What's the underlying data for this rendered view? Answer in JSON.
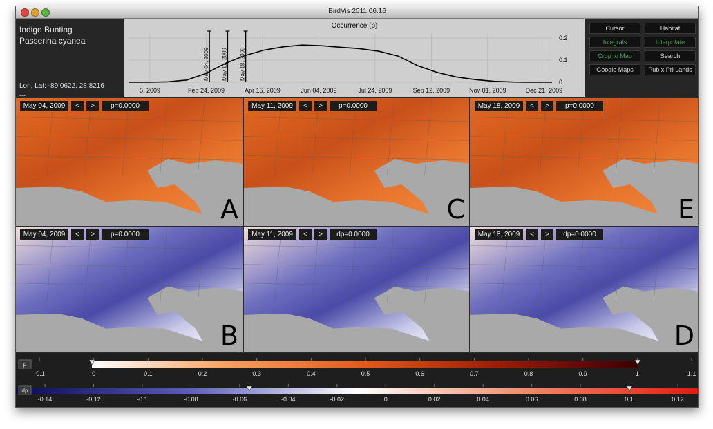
{
  "window": {
    "title": "BirdVis   2011.06.16"
  },
  "info": {
    "common_name": "Indigo Bunting",
    "scientific_name": "Passerina cyanea",
    "lonlat": "Lon, Lat: -89.0622, 28.8216",
    "extra": "---"
  },
  "chart_data": {
    "type": "line",
    "title": "Occurrence (p)",
    "x_tick_labels": [
      "5, 2009",
      "Feb 24, 2009",
      "Apr 15, 2009",
      "Jun 04, 2009",
      "Jul 24, 2009",
      "Sep 12, 2009",
      "Nov 01, 2009",
      "Dec 21, 2009"
    ],
    "y_tick_labels": [
      "0.2",
      "0.1",
      "0"
    ],
    "ylim": [
      0,
      0.2
    ],
    "grid": true,
    "series": [
      {
        "x": [
          "Jan 05",
          "Feb 04",
          "Mar 06",
          "Apr 05",
          "Apr 25",
          "May 04",
          "May 11",
          "May 18",
          "May 25",
          "Jun 04",
          "Jun 14",
          "Jun 24",
          "Jul 04",
          "Jul 24",
          "Aug 13",
          "Sep 02",
          "Sep 12",
          "Oct 02",
          "Oct 22",
          "Nov 11",
          "Dec 01",
          "Dec 21",
          "Jan 01"
        ],
        "values": [
          0.0,
          0.0,
          0.002,
          0.01,
          0.04,
          0.085,
          0.12,
          0.145,
          0.16,
          0.168,
          0.165,
          0.158,
          0.152,
          0.14,
          0.118,
          0.075,
          0.045,
          0.024,
          0.012,
          0.004,
          0.001,
          0.0,
          0.0
        ]
      }
    ],
    "markers": [
      "May 04, 2009",
      "May 11, 2009",
      "May 18, 2009"
    ]
  },
  "buttons": [
    {
      "label": "Cursor",
      "style": "normal"
    },
    {
      "label": "Habitat",
      "style": "normal"
    },
    {
      "label": "Integrals",
      "style": "green"
    },
    {
      "label": "Interpolate",
      "style": "green"
    },
    {
      "label": "Crop to Map",
      "style": "green"
    },
    {
      "label": "Search",
      "style": "normal"
    },
    {
      "label": "Google Maps",
      "style": "normal"
    },
    {
      "label": "Pub x Pri Lands",
      "style": "normal"
    }
  ],
  "panels": [
    {
      "date": "May 04, 2009",
      "value": "p=0.0000",
      "letter": "A",
      "kind": "p"
    },
    {
      "date": "May 11, 2009",
      "value": "p=0.0000",
      "letter": "C",
      "kind": "p"
    },
    {
      "date": "May 18, 2009",
      "value": "p=0.0000",
      "letter": "E",
      "kind": "p"
    },
    {
      "date": "May 04, 2009",
      "value": "p=0.0000",
      "letter": "B",
      "kind": "dp"
    },
    {
      "date": "May 11, 2009",
      "value": "dp=0.0000",
      "letter": "",
      "kind": "dp"
    },
    {
      "date": "May 18, 2009",
      "value": "dp=0.0000",
      "letter": "D",
      "kind": "dp"
    }
  ],
  "prev_label": "<",
  "next_label": ">",
  "p_scale": {
    "tag": "p",
    "labels": [
      "-0.1",
      "0",
      "0.1",
      "0.2",
      "0.3",
      "0.4",
      "0.5",
      "0.6",
      "0.7",
      "0.8",
      "0.9",
      "1",
      "1.1"
    ],
    "colors": [
      "#ffffff",
      "#f6a060",
      "#e4581a",
      "#9a1a08",
      "#3a0000"
    ]
  },
  "dp_scale": {
    "tag": "dp",
    "labels": [
      "-0.14",
      "-0.12",
      "-0.1",
      "-0.08",
      "-0.06",
      "-0.04",
      "-0.02",
      "0",
      "0.02",
      "0.04",
      "0.06",
      "0.08",
      "0.1",
      "0.12"
    ],
    "colors": [
      "#0a0a55",
      "#5a5ab8",
      "#ffffff",
      "#f08a68",
      "#e01a10"
    ]
  }
}
